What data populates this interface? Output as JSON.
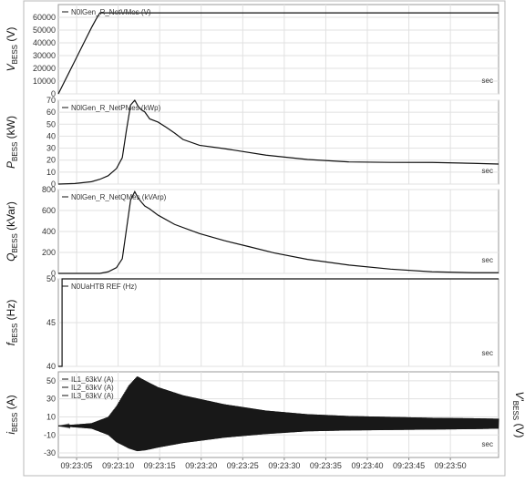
{
  "chart_data": [
    {
      "type": "line",
      "ylabel": "V_BESS (V)",
      "ylabel_main": "V",
      "ylabel_sub": "BESS",
      "ylabel_unit": "(V)",
      "unit_label": "sec",
      "ylim": [
        0,
        70000
      ],
      "yticks": [
        0,
        10000,
        20000,
        30000,
        40000,
        50000,
        60000
      ],
      "series": [
        {
          "name": "N0lGen_R_NetVMes (V)",
          "x": [
            0,
            1,
            2,
            3,
            4,
            4.5,
            5,
            10,
            15,
            20,
            25,
            30,
            35,
            40,
            45,
            50,
            53
          ],
          "y": [
            0,
            13000,
            26000,
            39000,
            52000,
            58000,
            63500,
            63500,
            63500,
            63500,
            63500,
            63500,
            63500,
            63500,
            63500,
            63500,
            63500
          ]
        }
      ]
    },
    {
      "type": "line",
      "ylabel": "P_BESS (kW)",
      "ylabel_main": "P",
      "ylabel_sub": "BESS",
      "ylabel_unit": "(kW)",
      "unit_label": "sec",
      "ylim": [
        0,
        70
      ],
      "yticks": [
        0,
        10,
        20,
        30,
        40,
        50,
        60,
        70
      ],
      "series": [
        {
          "name": "N0lGen_R_NetPMes (kWp)",
          "x": [
            0,
            2,
            4,
            5,
            6,
            7,
            7.7,
            8.2,
            8.7,
            9.2,
            9.6,
            10,
            10.4,
            11,
            12,
            13,
            14,
            15,
            17,
            20,
            25,
            30,
            35,
            40,
            45,
            50,
            53
          ],
          "y": [
            0,
            0.5,
            2,
            4,
            7,
            13,
            22,
            45,
            66,
            70,
            65,
            62,
            60,
            55,
            52,
            47,
            42,
            37,
            33,
            29,
            24,
            21,
            19,
            18,
            17.5,
            17,
            17
          ]
        }
      ]
    },
    {
      "type": "line",
      "ylabel": "Q_BESS (kVar)",
      "ylabel_main": "Q",
      "ylabel_sub": "BESS",
      "ylabel_unit": "(kVar)",
      "unit_label": "sec",
      "ylim": [
        0,
        800
      ],
      "yticks": [
        0,
        200,
        400,
        600,
        800
      ],
      "series": [
        {
          "name": "N0lGen_R_NetQMes (kVArp)",
          "x": [
            0,
            5,
            6,
            7,
            7.7,
            8.2,
            8.7,
            9.2,
            9.6,
            10,
            10.4,
            11,
            12,
            14,
            17,
            20,
            23,
            26,
            30,
            35,
            40,
            45,
            50,
            53
          ],
          "y": [
            0,
            0,
            15,
            55,
            140,
            420,
            700,
            780,
            720,
            680,
            640,
            620,
            560,
            470,
            380,
            310,
            250,
            190,
            130,
            80,
            45,
            20,
            8,
            5
          ]
        }
      ]
    },
    {
      "type": "line",
      "ylabel": "f_BESS (Hz)",
      "ylabel_main": "f",
      "ylabel_sub": "BESS",
      "ylabel_unit": "(Hz)",
      "unit_label": "sec",
      "ylim": [
        40,
        50
      ],
      "yticks": [
        40,
        45,
        50
      ],
      "series": [
        {
          "name": "N0UaHTB REF (Hz)",
          "x": [
            0,
            0.45,
            0.45,
            53
          ],
          "y": [
            40,
            40,
            50,
            50
          ]
        }
      ]
    },
    {
      "type": "area",
      "ylabel": "i_BESS (A)",
      "ylabel_main": "i",
      "ylabel_sub": "BESS",
      "ylabel_unit": "(A)",
      "right_label": "V'_BESS (V)",
      "right_label_main": "V'",
      "right_label_sub": "BESS",
      "right_label_unit": "(V)",
      "unit_label": "sec",
      "ylim": [
        -35,
        60
      ],
      "yticks": [
        -30,
        -10,
        10,
        30,
        50
      ],
      "xticks": [
        "09:23:05",
        "09:23:10",
        "09:23:15",
        "09:23:20",
        "09:23:25",
        "09:23:30",
        "09:23:35",
        "09:23:40",
        "09:23:45",
        "09:23:50"
      ],
      "x_tick_values": [
        2.2,
        7.2,
        12.2,
        17.2,
        22.2,
        27.2,
        32.2,
        37.2,
        42.2,
        47.2
      ],
      "series": [
        {
          "name": "IL1_63kV (A)"
        },
        {
          "name": "IL2_63kV (A)"
        },
        {
          "name": "IL3_63kV (A)"
        }
      ],
      "envelope": {
        "x": [
          0,
          4,
          6,
          7,
          8.5,
          9.5,
          10.5,
          12,
          15,
          20,
          25,
          30,
          35,
          40,
          45,
          50,
          53
        ],
        "upper": [
          0,
          3,
          10,
          22,
          45,
          55,
          50,
          43,
          34,
          24,
          17,
          13,
          11,
          10,
          9,
          8.5,
          8
        ],
        "lower": [
          0,
          -3,
          -10,
          -18,
          -25,
          -28,
          -27,
          -24,
          -19,
          -13,
          -9,
          -6,
          -5,
          -4.5,
          -4,
          -3.5,
          -3
        ]
      }
    }
  ]
}
